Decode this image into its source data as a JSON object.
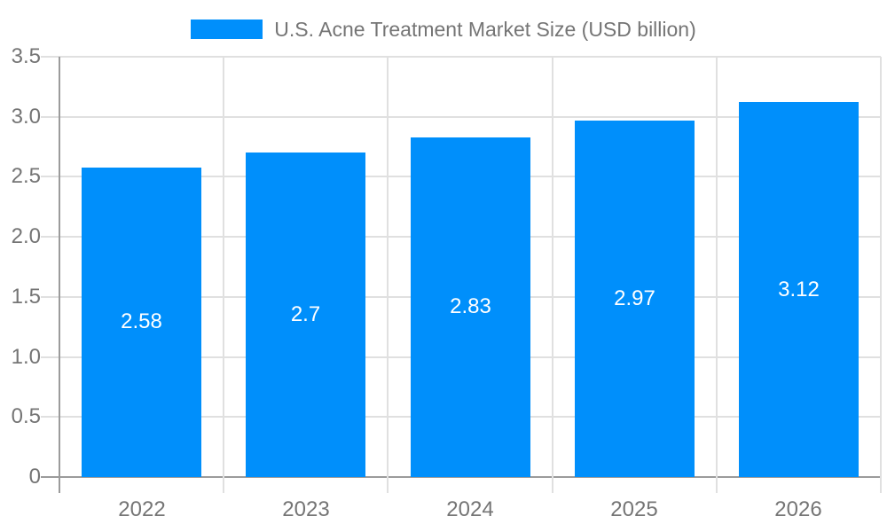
{
  "legend": {
    "label": "U.S. Acne Treatment Market Size (USD billion)",
    "swatch_color": "#008FFB"
  },
  "chart_data": {
    "type": "bar",
    "title": "U.S. Acne Treatment Market Size (USD billion)",
    "categories": [
      "2022",
      "2023",
      "2024",
      "2025",
      "2026"
    ],
    "series": [
      {
        "name": "U.S. Acne Treatment Market Size (USD billion)",
        "values": [
          2.58,
          2.7,
          2.83,
          2.97,
          3.12
        ]
      }
    ],
    "bar_labels": [
      "2.58",
      "2.7",
      "2.83",
      "2.97",
      "3.12"
    ],
    "xlabel": "",
    "ylabel": "",
    "ylim": [
      0,
      3.5
    ],
    "yticks": [
      {
        "value": 0,
        "label": "0"
      },
      {
        "value": 0.5,
        "label": "0.5"
      },
      {
        "value": 1.0,
        "label": "1.0"
      },
      {
        "value": 1.5,
        "label": "1.5"
      },
      {
        "value": 2.0,
        "label": "2.0"
      },
      {
        "value": 2.5,
        "label": "2.5"
      },
      {
        "value": 3.0,
        "label": "3.0"
      },
      {
        "value": 3.5,
        "label": "3.5"
      }
    ],
    "grid": true,
    "legend_position": "top",
    "colors": {
      "bar": "#008FFB",
      "axis_label": "#757575",
      "gridline": "#e0e0e0",
      "axis_line": "#9b9b9b",
      "bar_label": "#ffffff",
      "background": "#ffffff"
    }
  }
}
